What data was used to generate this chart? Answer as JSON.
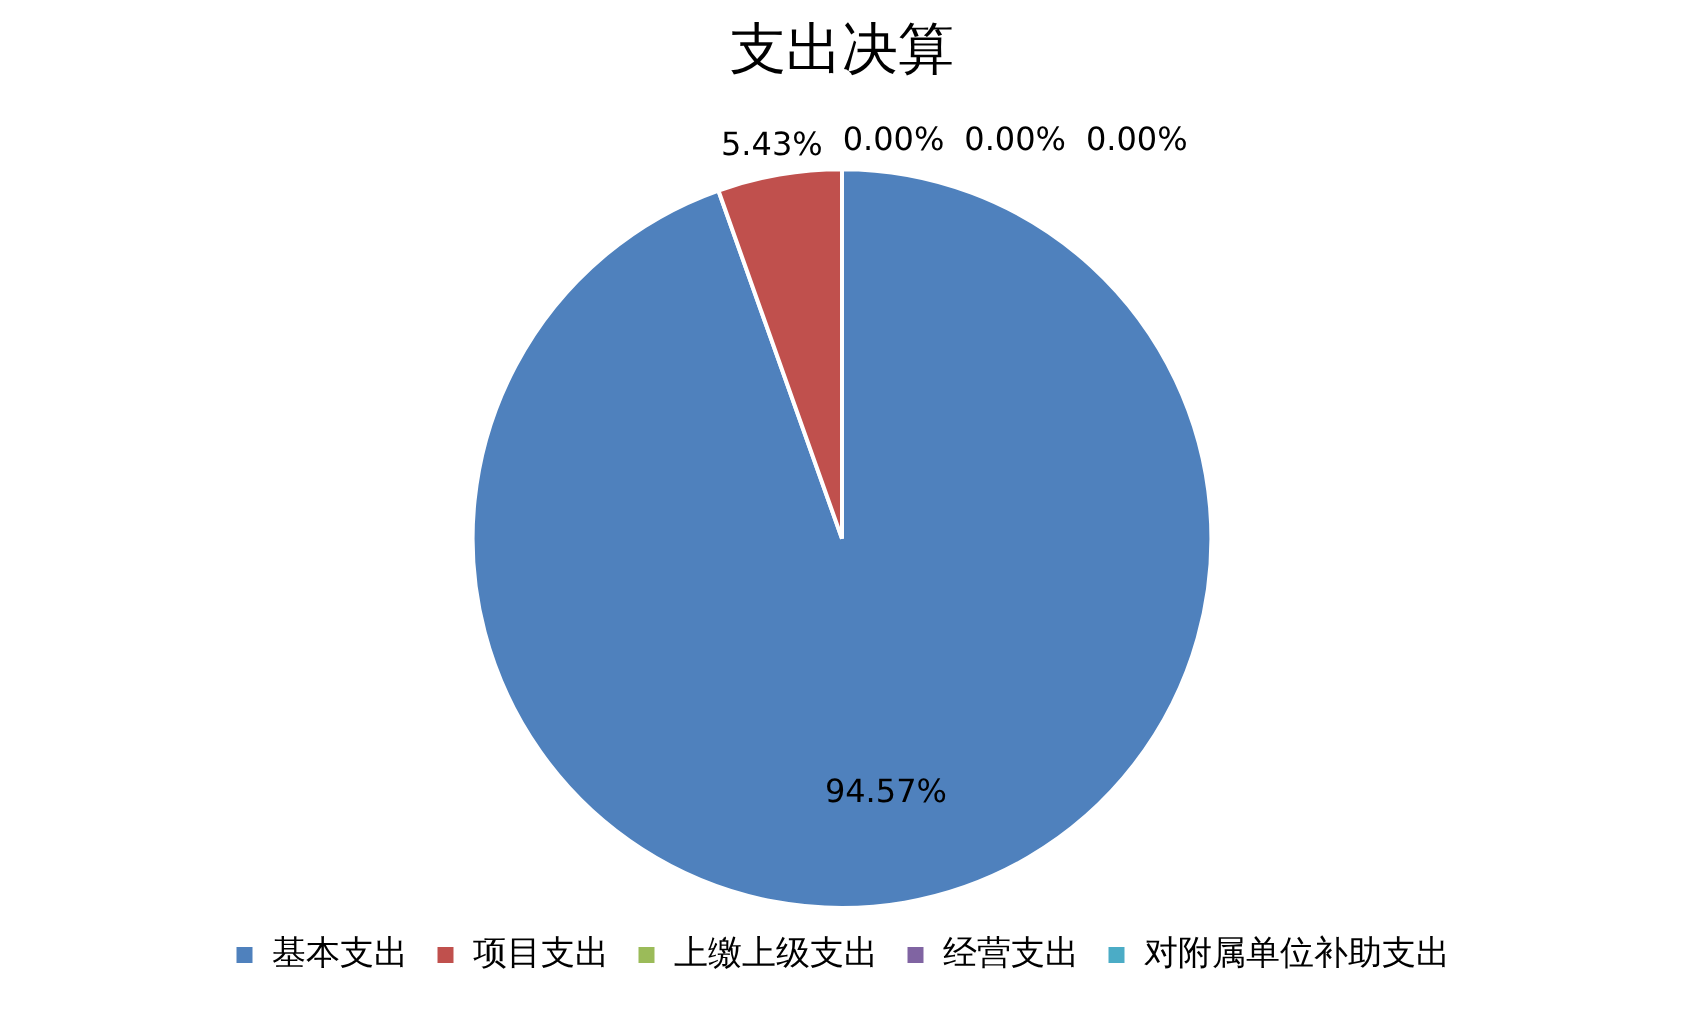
{
  "chart_data": {
    "type": "pie",
    "title": "支出决算",
    "categories": [
      "基本支出",
      "项目支出",
      "上缴上级支出",
      "经营支出",
      "对附属单位补助支出"
    ],
    "values": [
      94.57,
      5.43,
      0,
      0,
      0
    ],
    "colors": [
      "#4f81bd",
      "#c0504d",
      "#9bbb59",
      "#8064a2",
      "#4bacc6"
    ],
    "value_labels": [
      "94.57%",
      "5.43%",
      "0.00%",
      "0.00%",
      "0.00%"
    ],
    "legend": "bottom"
  }
}
